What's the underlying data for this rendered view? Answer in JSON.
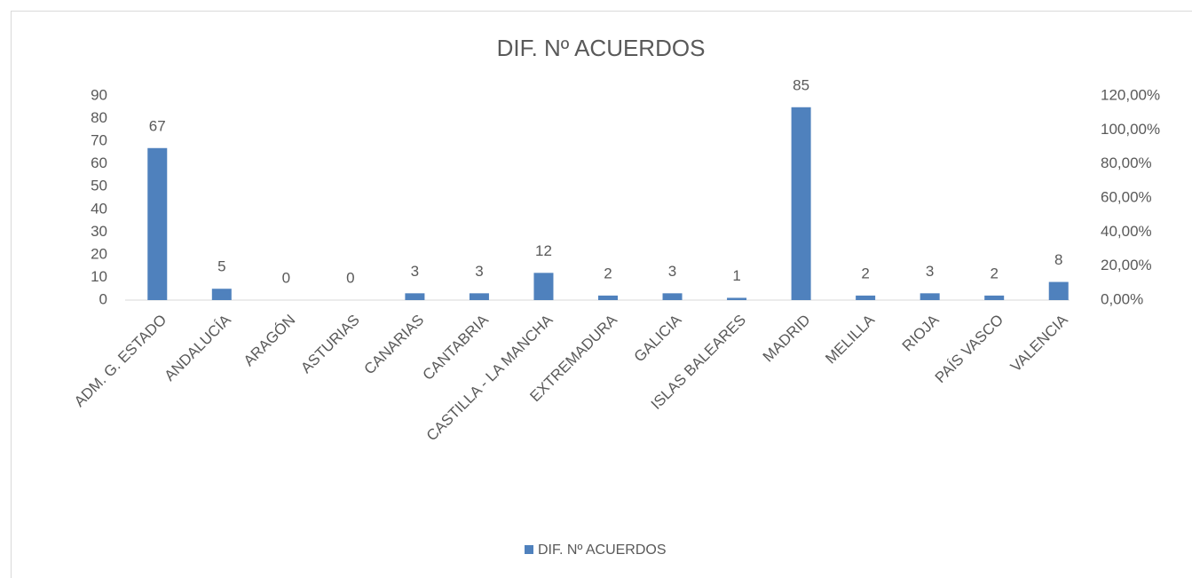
{
  "chart_data": {
    "type": "bar",
    "title": "DIF. Nº ACUERDOS",
    "categories": [
      "ADM. G. ESTADO",
      "ANDALUCÍA",
      "ARAGÓN",
      "ASTURIAS",
      "CANARIAS",
      "CANTABRIA",
      "CASTILLA - LA MANCHA",
      "EXTREMADURA",
      "GALICIA",
      "ISLAS BALEARES",
      "MADRID",
      "MELILLA",
      "RIOJA",
      "PAÍS VASCO",
      "VALENCIA"
    ],
    "series": [
      {
        "name": "DIF. Nº ACUERDOS",
        "color": "#4f81bd",
        "values": [
          67,
          5,
          0,
          0,
          3,
          3,
          12,
          2,
          3,
          1,
          85,
          2,
          3,
          2,
          8
        ]
      }
    ],
    "ylim": [
      0,
      90
    ],
    "yticks": [
      0,
      10,
      20,
      30,
      40,
      50,
      60,
      70,
      80,
      90
    ],
    "y2lim": [
      0,
      120
    ],
    "y2ticks": [
      {
        "value": 0,
        "label": "0,00%"
      },
      {
        "value": 20,
        "label": "20,00%"
      },
      {
        "value": 40,
        "label": "40,00%"
      },
      {
        "value": 60,
        "label": "60,00%"
      },
      {
        "value": 80,
        "label": "80,00%"
      },
      {
        "value": 100,
        "label": "100,00%"
      },
      {
        "value": 120,
        "label": "120,00%"
      }
    ],
    "legend": "bottom"
  }
}
